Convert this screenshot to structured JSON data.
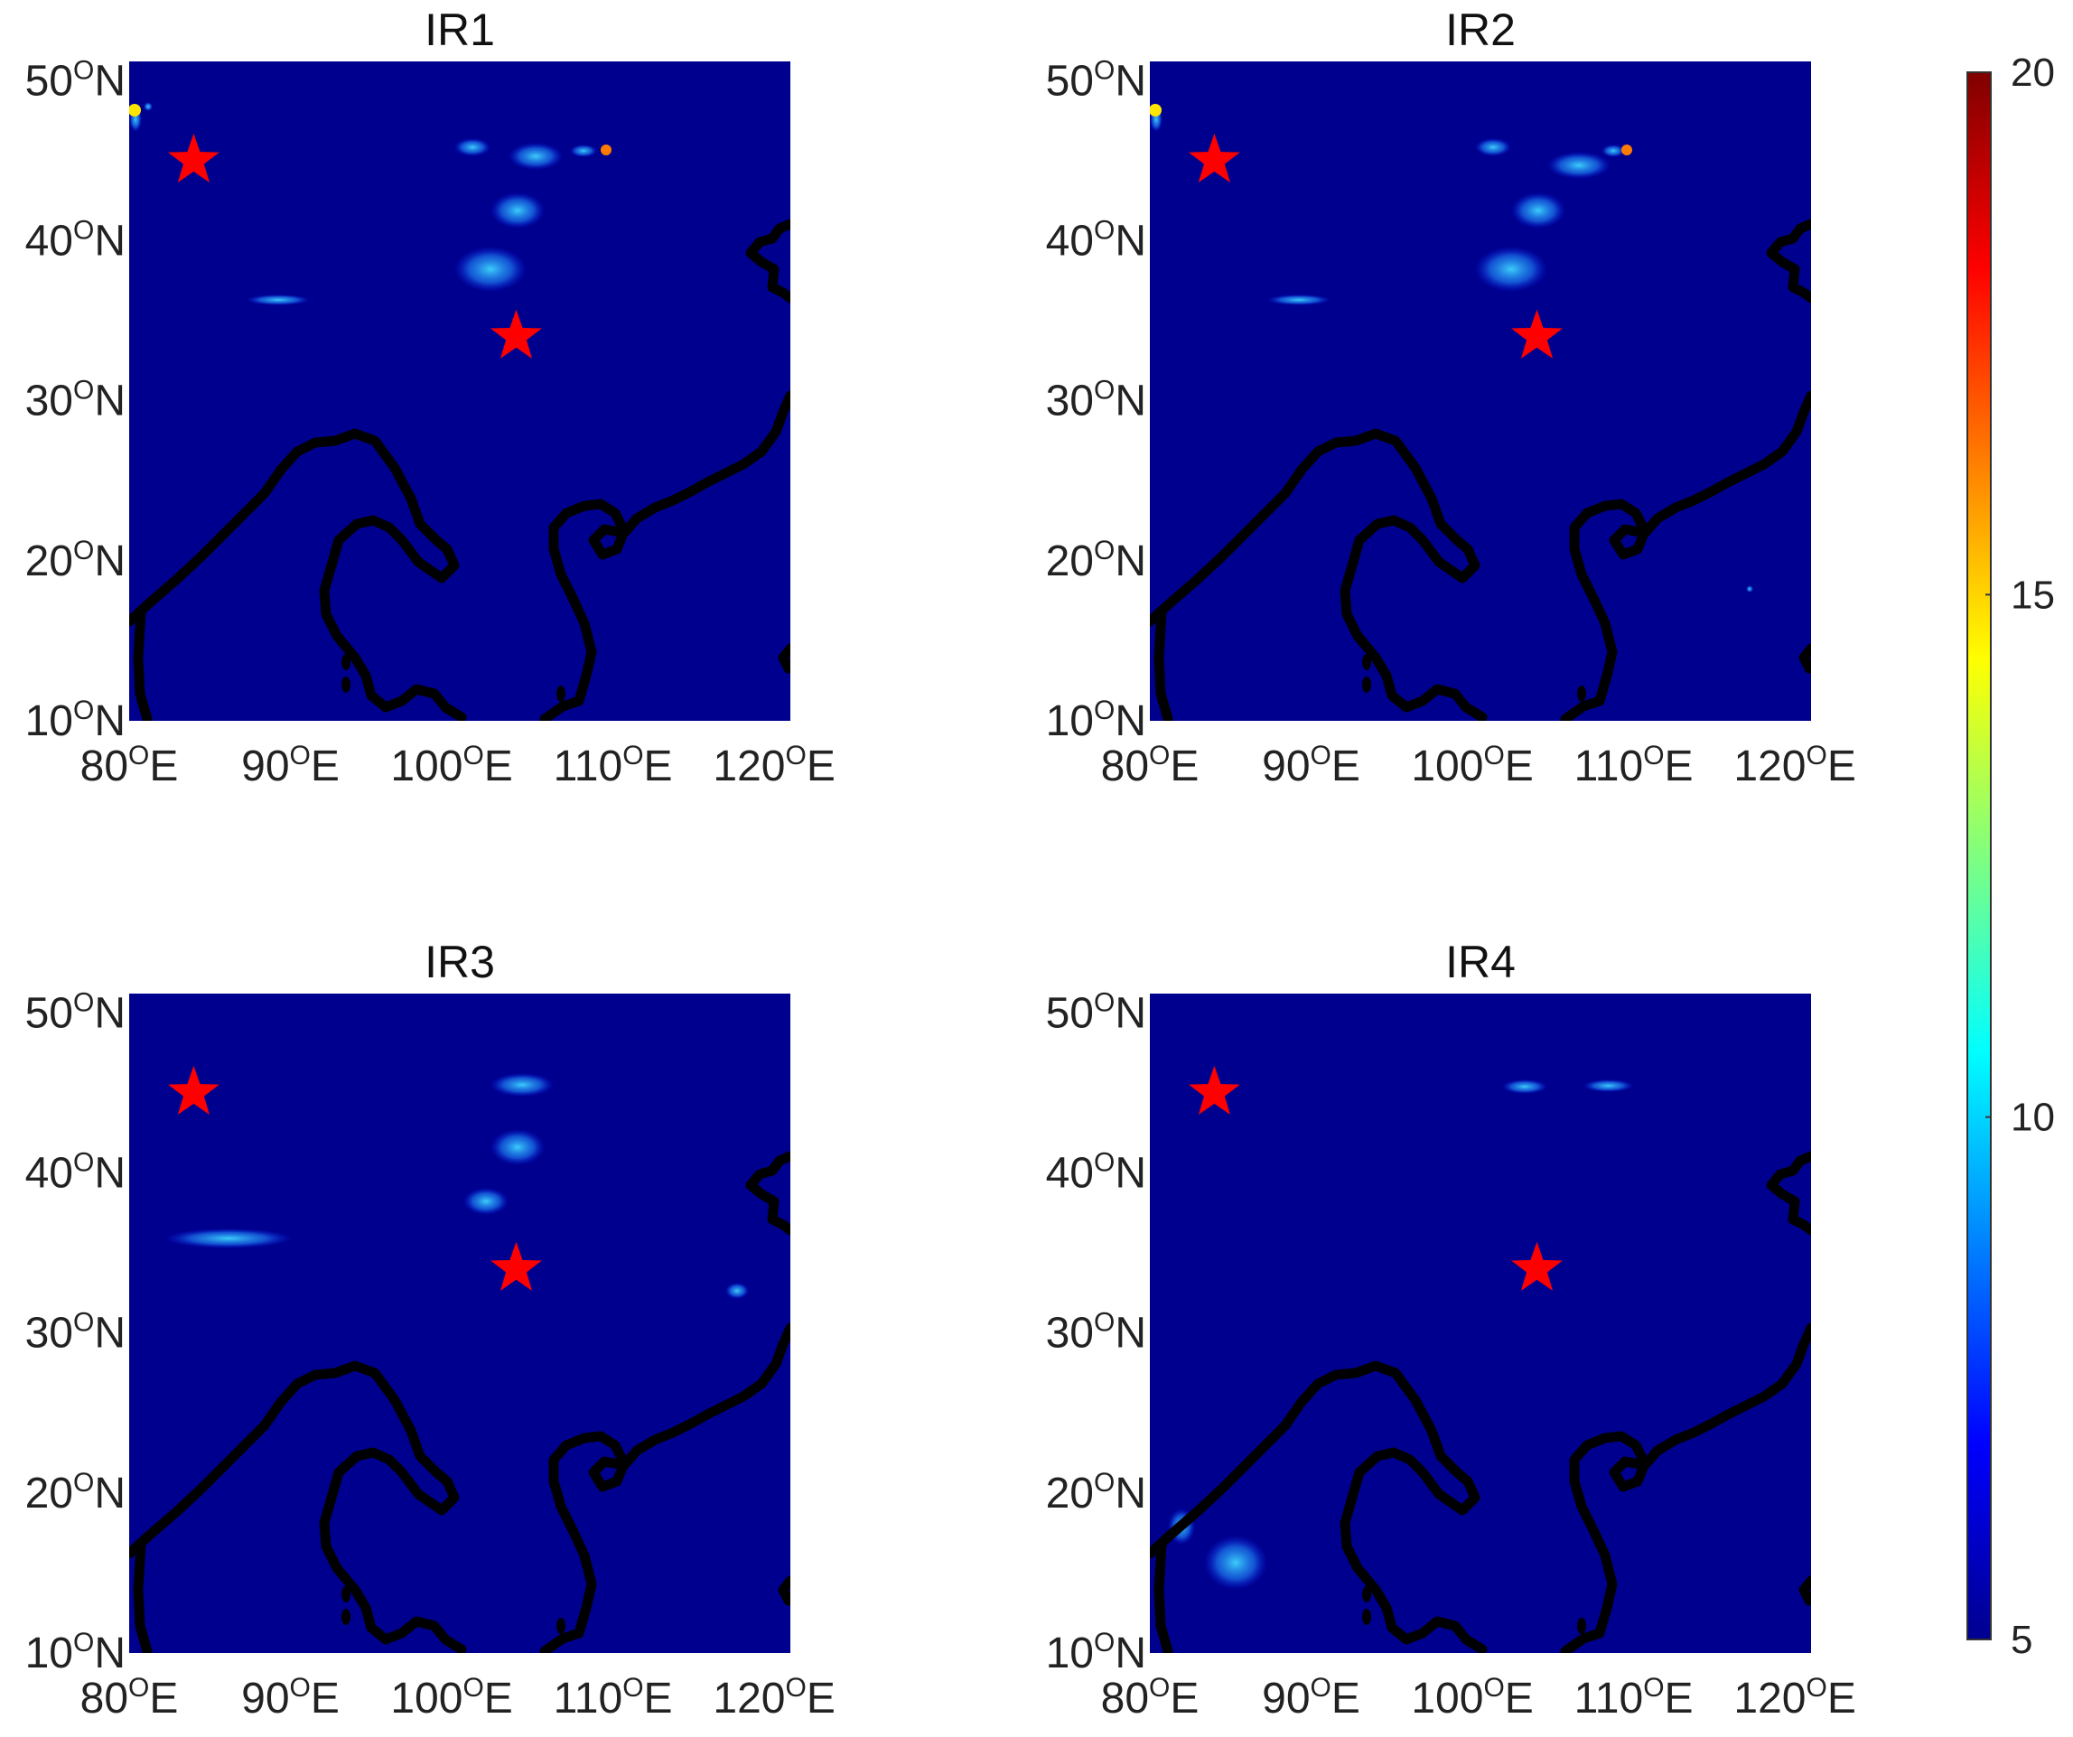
{
  "figure": {
    "colormap": "jet",
    "background_color": "#00008f",
    "coastline_color": "#000000",
    "marker": {
      "shape": "star",
      "color": "#ff0000"
    }
  },
  "lon_ticks": [
    {
      "value": 80,
      "label": "80",
      "unit": "E"
    },
    {
      "value": 90,
      "label": "90",
      "unit": "E"
    },
    {
      "value": 100,
      "label": "100",
      "unit": "E"
    },
    {
      "value": 110,
      "label": "110",
      "unit": "E"
    },
    {
      "value": 120,
      "label": "120",
      "unit": "E"
    }
  ],
  "lat_ticks": [
    {
      "value": 50,
      "label": "50",
      "unit": "N"
    },
    {
      "value": 40,
      "label": "40",
      "unit": "N"
    },
    {
      "value": 30,
      "label": "30",
      "unit": "N"
    },
    {
      "value": 20,
      "label": "20",
      "unit": "N"
    },
    {
      "value": 10,
      "label": "10",
      "unit": "N"
    }
  ],
  "degree_mark": "O",
  "stars": [
    {
      "lon": 84,
      "lat": 45
    },
    {
      "lon": 104,
      "lat": 34
    }
  ],
  "panels": [
    {
      "title": "IR1"
    },
    {
      "title": "IR2"
    },
    {
      "title": "IR3"
    },
    {
      "title": "IR4"
    }
  ],
  "colorbar": {
    "min": 5,
    "max": 20,
    "ticks": [
      {
        "value": 20,
        "label": "20"
      },
      {
        "value": 15,
        "label": "15"
      },
      {
        "value": 10,
        "label": "10"
      },
      {
        "value": 5,
        "label": "5"
      }
    ]
  }
}
